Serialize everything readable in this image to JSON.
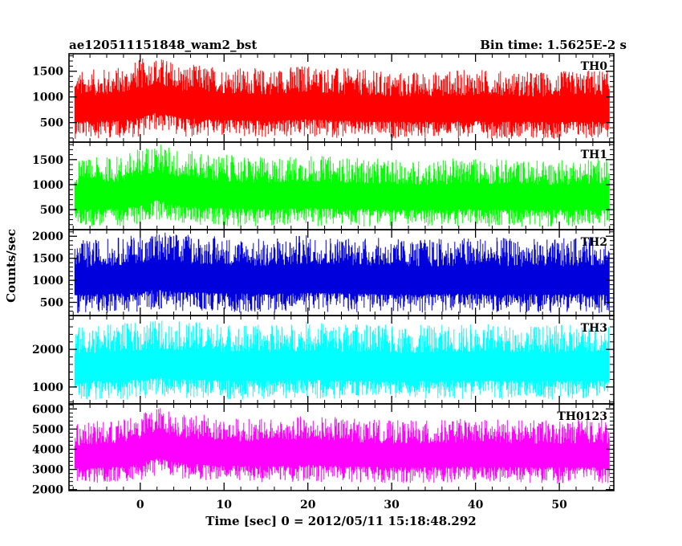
{
  "header": {
    "title": "ae120511151848_wam2_bst",
    "bin_time": "Bin time: 1.5625E-2 s"
  },
  "axes": {
    "ylabel": "Counts/sec",
    "xlabel": "Time [sec] 0 = 2012/05/11 15:18:48.292",
    "xlim": [
      -8.5,
      56.5
    ],
    "x_ticks": [
      0,
      10,
      20,
      30,
      40,
      50
    ],
    "x_tick_labels": [
      "0",
      "10",
      "20",
      "30",
      "40",
      "50"
    ]
  },
  "chart_data": [
    {
      "type": "line",
      "name": "TH0",
      "color": "#ff0000",
      "ylim": [
        120,
        1840
      ],
      "y_ticks": [
        500,
        1000,
        1500
      ],
      "y_tick_labels": [
        "500",
        "1000",
        "1500"
      ],
      "x_range": [
        -7.8,
        56.0
      ],
      "sample_curve": {
        "x": [
          -7.8,
          -5,
          -2,
          0,
          2,
          5,
          10,
          15,
          20,
          25,
          30,
          35,
          40,
          45,
          50,
          55,
          56.0
        ],
        "y_low": [
          180,
          190,
          200,
          210,
          330,
          230,
          200,
          195,
          200,
          195,
          190,
          190,
          185,
          185,
          180,
          180,
          180
        ],
        "y_high": [
          1500,
          1550,
          1600,
          1750,
          1800,
          1650,
          1600,
          1550,
          1650,
          1550,
          1500,
          1500,
          1550,
          1500,
          1500,
          1550,
          1500
        ]
      }
    },
    {
      "type": "line",
      "name": "TH1",
      "color": "#00ff00",
      "ylim": [
        100,
        1850
      ],
      "y_ticks": [
        500,
        1000,
        1500
      ],
      "y_tick_labels": [
        "500",
        "1000",
        "1500"
      ],
      "x_range": [
        -7.8,
        56.0
      ],
      "sample_curve": {
        "x": [
          -7.8,
          -5,
          -2,
          0,
          2,
          5,
          10,
          15,
          20,
          25,
          30,
          35,
          40,
          45,
          50,
          55,
          56.0
        ],
        "y_low": [
          150,
          160,
          170,
          180,
          300,
          200,
          170,
          165,
          170,
          165,
          160,
          160,
          160,
          160,
          155,
          155,
          155
        ],
        "y_high": [
          1500,
          1550,
          1600,
          1750,
          1850,
          1700,
          1600,
          1550,
          1600,
          1550,
          1500,
          1500,
          1550,
          1500,
          1500,
          1550,
          1500
        ]
      }
    },
    {
      "type": "line",
      "name": "TH2",
      "color": "#0000dd",
      "ylim": [
        200,
        2150
      ],
      "y_ticks": [
        500,
        1000,
        1500,
        2000
      ],
      "y_tick_labels": [
        "500",
        "1000",
        "1500",
        "2000"
      ],
      "x_range": [
        -7.8,
        56.0
      ],
      "sample_curve": {
        "x": [
          -7.8,
          -5,
          -2,
          0,
          2,
          5,
          10,
          15,
          20,
          25,
          30,
          35,
          40,
          45,
          50,
          55,
          56.0
        ],
        "y_low": [
          250,
          260,
          270,
          280,
          330,
          290,
          270,
          265,
          270,
          265,
          260,
          260,
          260,
          260,
          255,
          255,
          255
        ],
        "y_high": [
          1900,
          1950,
          2000,
          2050,
          2150,
          2050,
          2000,
          1950,
          2050,
          2000,
          1950,
          1950,
          2000,
          1950,
          1950,
          2000,
          1950
        ]
      }
    },
    {
      "type": "line",
      "name": "TH3",
      "color": "#00ffff",
      "ylim": [
        550,
        2900
      ],
      "y_ticks": [
        1000,
        2000
      ],
      "y_tick_labels": [
        "1000",
        "2000"
      ],
      "x_range": [
        -7.8,
        56.0
      ],
      "sample_curve": {
        "x": [
          -7.8,
          -5,
          -2,
          0,
          2,
          5,
          10,
          15,
          20,
          25,
          30,
          35,
          40,
          45,
          50,
          55,
          56.0
        ],
        "y_low": [
          650,
          660,
          670,
          680,
          720,
          690,
          670,
          665,
          670,
          665,
          660,
          660,
          660,
          660,
          655,
          655,
          655
        ],
        "y_high": [
          2600,
          2650,
          2700,
          2750,
          2800,
          2750,
          2700,
          2650,
          2750,
          2700,
          2650,
          2650,
          2700,
          2650,
          2650,
          2700,
          2650
        ]
      }
    },
    {
      "type": "line",
      "name": "TH0123",
      "color": "#ff00ff",
      "ylim": [
        1950,
        6250
      ],
      "y_ticks": [
        2000,
        3000,
        4000,
        5000,
        6000
      ],
      "y_tick_labels": [
        "2000",
        "3000",
        "4000",
        "5000",
        "6000"
      ],
      "x_range": [
        -7.8,
        56.0
      ],
      "sample_curve": {
        "x": [
          -7.8,
          -5,
          -2,
          0,
          2,
          5,
          10,
          15,
          20,
          25,
          30,
          35,
          40,
          45,
          50,
          55,
          56.0
        ],
        "y_low": [
          2300,
          2320,
          2350,
          2400,
          2700,
          2450,
          2380,
          2350,
          2380,
          2350,
          2320,
          2320,
          2330,
          2320,
          2300,
          2300,
          2300
        ],
        "y_high": [
          5300,
          5400,
          5500,
          5800,
          6150,
          5850,
          5600,
          5500,
          5700,
          5550,
          5450,
          5450,
          5550,
          5450,
          5450,
          5550,
          5450
        ]
      }
    }
  ]
}
